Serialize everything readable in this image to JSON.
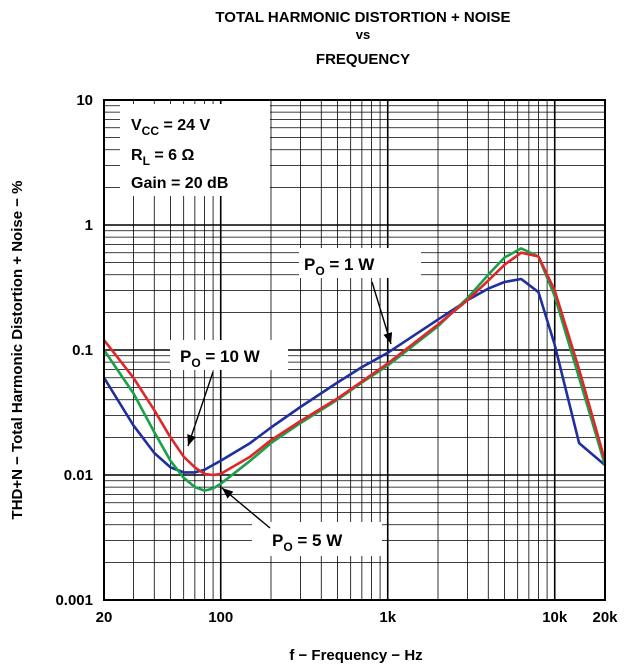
{
  "chart_data": {
    "type": "line",
    "title_lines": [
      "TOTAL HARMONIC DISTORTION + NOISE",
      "vs",
      "FREQUENCY"
    ],
    "xlabel": "f − Frequency − Hz",
    "ylabel": "THD+N − Total Harmonic Distortion + Noise − %",
    "x_scale": "log",
    "y_scale": "log",
    "xlim": [
      20,
      20000
    ],
    "ylim": [
      0.001,
      10
    ],
    "x_tick_values": [
      20,
      100,
      1000,
      10000,
      20000
    ],
    "x_tick_labels": [
      "20",
      "100",
      "1k",
      "10k",
      "20k"
    ],
    "y_tick_values": [
      0.001,
      0.01,
      0.1,
      1,
      10
    ],
    "y_tick_labels": [
      "0.001",
      "0.01",
      "0.1",
      "1",
      "10"
    ],
    "grid": true,
    "conditions": [
      {
        "main": "V",
        "sub": "CC",
        "rest": " = 24 V"
      },
      {
        "main": "R",
        "sub": "L",
        "rest": " = 6 Ω"
      },
      {
        "main": "Gain = 20 dB",
        "sub": "",
        "rest": ""
      }
    ],
    "series": [
      {
        "label_main": "P",
        "label_sub": "O",
        "label_rest": " = 1 W",
        "color": "#1f2f9f",
        "x": [
          20,
          30,
          40,
          50,
          60,
          70,
          80,
          100,
          150,
          200,
          300,
          500,
          700,
          1000,
          2000,
          3000,
          4000,
          5000,
          6300,
          8000,
          10000,
          14000,
          20000
        ],
        "y": [
          0.06,
          0.025,
          0.015,
          0.0115,
          0.0105,
          0.0105,
          0.011,
          0.013,
          0.018,
          0.024,
          0.035,
          0.055,
          0.073,
          0.095,
          0.175,
          0.25,
          0.31,
          0.35,
          0.37,
          0.29,
          0.11,
          0.018,
          0.012
        ]
      },
      {
        "label_main": "P",
        "label_sub": "O",
        "label_rest": " = 5 W",
        "color": "#17a24a",
        "x": [
          20,
          30,
          40,
          50,
          60,
          70,
          80,
          90,
          100,
          150,
          200,
          300,
          500,
          700,
          1000,
          2000,
          3000,
          4000,
          5000,
          6300,
          8000,
          10000,
          14000,
          20000
        ],
        "y": [
          0.1,
          0.045,
          0.022,
          0.013,
          0.0095,
          0.008,
          0.0075,
          0.0078,
          0.0085,
          0.013,
          0.018,
          0.026,
          0.04,
          0.055,
          0.075,
          0.155,
          0.26,
          0.4,
          0.55,
          0.65,
          0.56,
          0.27,
          0.06,
          0.012
        ]
      },
      {
        "label_main": "P",
        "label_sub": "O",
        "label_rest": " = 10 W",
        "color": "#e0262a",
        "x": [
          20,
          30,
          40,
          50,
          60,
          70,
          80,
          90,
          100,
          150,
          200,
          300,
          500,
          700,
          1000,
          2000,
          3000,
          4000,
          5000,
          6300,
          8000,
          10000,
          14000,
          20000
        ],
        "y": [
          0.12,
          0.06,
          0.033,
          0.02,
          0.014,
          0.0115,
          0.0102,
          0.01,
          0.0102,
          0.014,
          0.019,
          0.027,
          0.041,
          0.056,
          0.078,
          0.16,
          0.25,
          0.36,
          0.48,
          0.6,
          0.56,
          0.3,
          0.07,
          0.013
        ]
      }
    ]
  }
}
